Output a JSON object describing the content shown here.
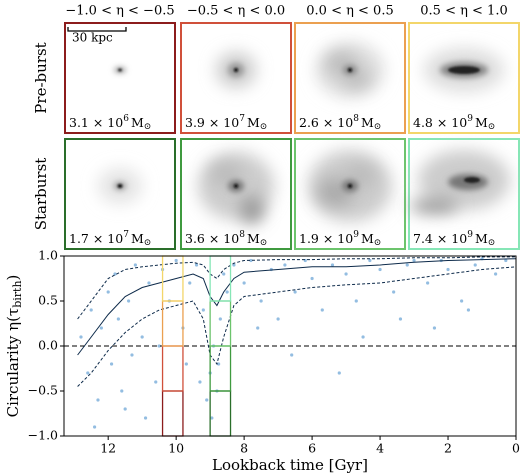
{
  "panels": {
    "columns": [
      "−1.0 < η < −0.5",
      "−0.5 < η < 0.0",
      "0.0 < η < 0.5",
      "0.5 < η < 1.0"
    ],
    "scalebar": "30 kpc",
    "unit": "M",
    "unit_sub": "⊙",
    "rows": [
      {
        "label": "Pre-burst",
        "colors": [
          "#8c1c1c",
          "#d0503a",
          "#eba050",
          "#f3d66a"
        ],
        "masses": [
          {
            "mantissa": "3.1 × 10",
            "exponent": "6"
          },
          {
            "mantissa": "3.9 × 10",
            "exponent": "7"
          },
          {
            "mantissa": "2.6 × 10",
            "exponent": "8"
          },
          {
            "mantissa": "4.8 × 10",
            "exponent": "9"
          }
        ]
      },
      {
        "label": "Starburst",
        "colors": [
          "#2a6e2a",
          "#3f9a3f",
          "#6cc46c",
          "#86e6b6"
        ],
        "masses": [
          {
            "mantissa": "1.7 × 10",
            "exponent": "7"
          },
          {
            "mantissa": "3.6 × 10",
            "exponent": "8"
          },
          {
            "mantissa": "1.9 × 10",
            "exponent": "9"
          },
          {
            "mantissa": "7.4 × 10",
            "exponent": "9"
          }
        ]
      }
    ]
  },
  "chart_data": {
    "type": "scatter",
    "xlabel": "Lookback time [Gyr]",
    "ylabel": "Circularity η(τ",
    "ylabel_sub": "birth",
    "ylabel_end": ")",
    "xlim": [
      13.3,
      0
    ],
    "ylim": [
      -1.0,
      1.0
    ],
    "xticks": [
      12,
      10,
      8,
      6,
      4,
      2,
      0
    ],
    "yticks": [
      {
        "value": -1.0,
        "label": "−1.0"
      },
      {
        "value": -0.5,
        "label": "−0.5"
      },
      {
        "value": 0.0,
        "label": "0.0"
      },
      {
        "value": 0.5,
        "label": "0.5"
      },
      {
        "value": 1.0,
        "label": "1.0"
      }
    ],
    "bins": [
      [
        -1.0,
        -0.5
      ],
      [
        -0.5,
        0.0
      ],
      [
        0.0,
        0.5
      ],
      [
        0.5,
        1.0
      ]
    ],
    "windows": [
      {
        "xrange": [
          10.4,
          9.8
        ]
      },
      {
        "xrange": [
          9.0,
          8.4
        ]
      }
    ],
    "scatter": {
      "color": "#3a86c8",
      "x": [
        12.8,
        12.6,
        12.5,
        12.3,
        12.2,
        12.0,
        11.9,
        11.8,
        11.7,
        11.5,
        11.4,
        11.2,
        11.0,
        10.8,
        10.6,
        10.4,
        10.2,
        10.0,
        9.8,
        9.6,
        9.4,
        9.2,
        9.1,
        9.0,
        8.9,
        8.8,
        8.7,
        8.6,
        8.5,
        8.3,
        8.0,
        7.8,
        7.5,
        7.2,
        7.0,
        6.8,
        6.5,
        6.2,
        6.0,
        5.7,
        5.4,
        5.0,
        4.7,
        4.3,
        4.0,
        3.6,
        3.2,
        3.0,
        2.6,
        2.2,
        2.0,
        1.6,
        1.2,
        1.0,
        0.6,
        0.3,
        12.4,
        11.6,
        11.3,
        10.9,
        10.5,
        9.7,
        9.3,
        8.95,
        8.75,
        7.6,
        6.6,
        5.2,
        4.5,
        3.4,
        2.4,
        1.4
      ],
      "y": [
        0.1,
        -0.3,
        0.4,
        -0.6,
        0.2,
        0.6,
        -0.2,
        0.8,
        0.3,
        -0.7,
        0.5,
        0.9,
        0.1,
        0.7,
        -0.4,
        0.85,
        0.5,
        0.95,
        0.2,
        0.7,
        0.9,
        0.4,
        -0.6,
        -0.3,
        0.0,
        -0.5,
        0.3,
        0.8,
        0.6,
        0.9,
        0.7,
        0.95,
        0.5,
        0.85,
        0.3,
        0.9,
        0.6,
        0.95,
        0.75,
        0.4,
        0.9,
        0.8,
        0.5,
        0.95,
        0.85,
        0.6,
        0.9,
        0.95,
        0.7,
        0.95,
        0.85,
        0.5,
        0.9,
        0.97,
        0.8,
        0.95,
        -0.9,
        -0.5,
        -0.1,
        -0.8,
        0.0,
        -0.2,
        -0.4,
        -0.8,
        -0.2,
        0.2,
        -0.1,
        -0.3,
        0.1,
        0.3,
        0.2,
        0.4
      ]
    },
    "lines": [
      {
        "style": "solid",
        "color": "#0d2a4a",
        "x": [
          12.9,
          12.5,
          12,
          11.5,
          11,
          10.5,
          10,
          9.5,
          9.2,
          9.0,
          8.8,
          8.6,
          8.3,
          8,
          7,
          6,
          5,
          4,
          3,
          2,
          1,
          0
        ],
        "y": [
          -0.1,
          0.1,
          0.35,
          0.55,
          0.65,
          0.7,
          0.75,
          0.8,
          0.75,
          0.55,
          0.45,
          0.6,
          0.75,
          0.82,
          0.85,
          0.88,
          0.88,
          0.9,
          0.93,
          0.95,
          0.96,
          0.97
        ]
      },
      {
        "style": "dashed",
        "color": "#0d2a4a",
        "x": [
          12.9,
          12.5,
          12,
          11.5,
          11,
          10.5,
          10,
          9.5,
          9.2,
          9.0,
          8.8,
          8.6,
          8.3,
          8,
          7,
          6,
          5,
          4,
          3,
          2,
          1,
          0
        ],
        "y": [
          0.3,
          0.5,
          0.75,
          0.85,
          0.88,
          0.9,
          0.92,
          0.93,
          0.9,
          0.8,
          0.75,
          0.85,
          0.92,
          0.95,
          0.96,
          0.96,
          0.97,
          0.97,
          0.98,
          0.98,
          0.99,
          0.99
        ]
      },
      {
        "style": "dashed",
        "color": "#0d2a4a",
        "x": [
          12.9,
          12.5,
          12,
          11.5,
          11,
          10.5,
          10,
          9.5,
          9.2,
          9.0,
          8.8,
          8.6,
          8.3,
          8,
          7,
          6,
          5,
          4,
          3,
          2,
          1,
          0
        ],
        "y": [
          -0.45,
          -0.3,
          -0.05,
          0.15,
          0.3,
          0.4,
          0.45,
          0.5,
          0.3,
          -0.1,
          -0.2,
          0.1,
          0.45,
          0.55,
          0.6,
          0.65,
          0.68,
          0.7,
          0.75,
          0.8,
          0.85,
          0.88
        ]
      }
    ]
  }
}
